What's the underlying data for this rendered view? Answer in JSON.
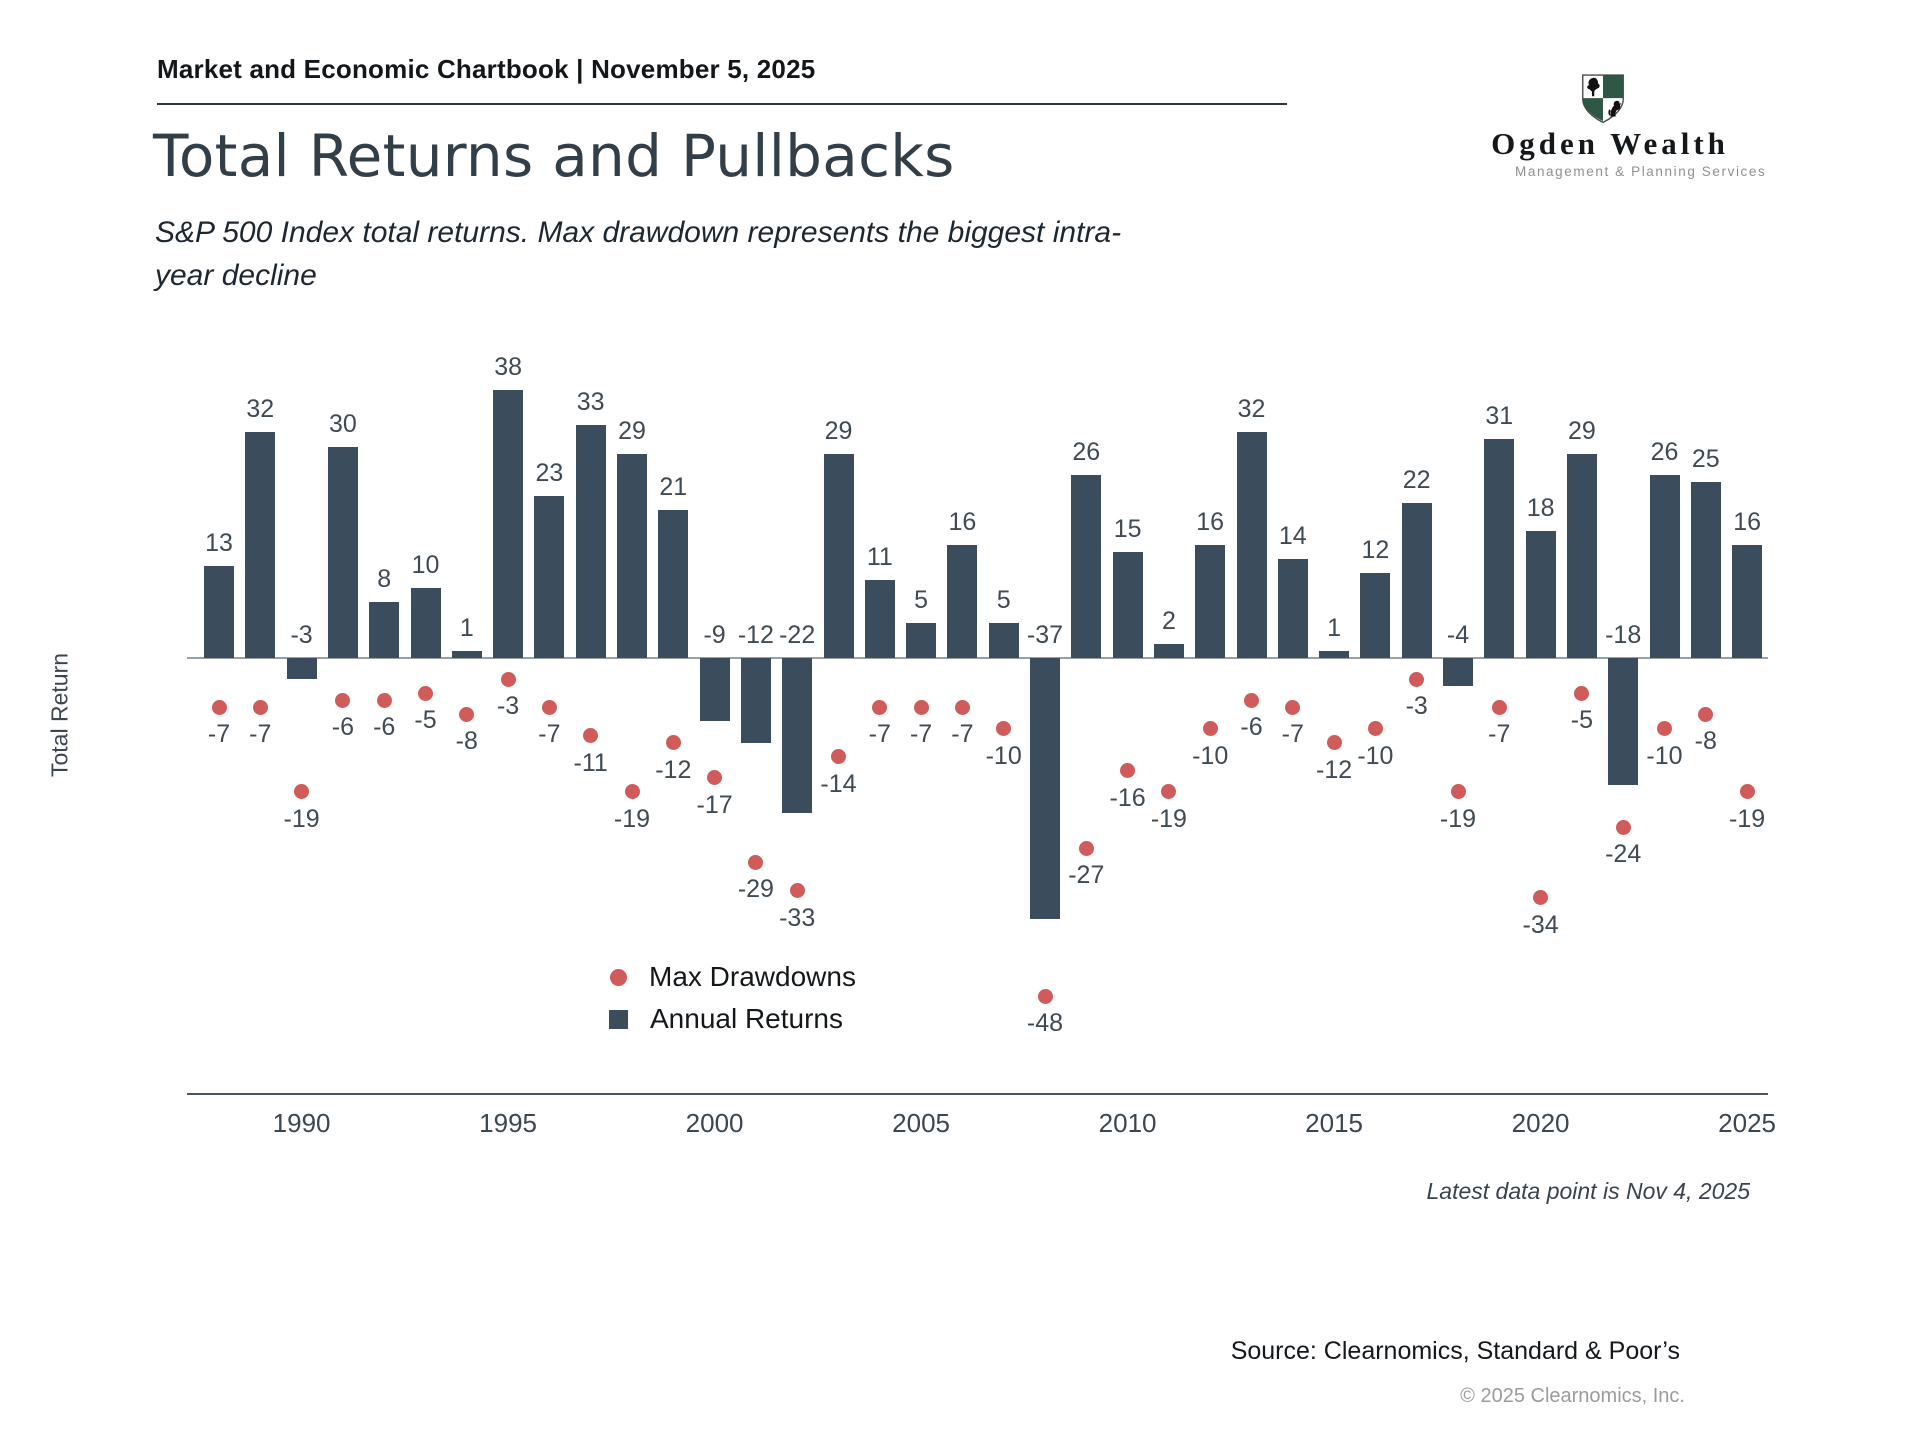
{
  "header": {
    "chartbook_line": "Market and Economic Chartbook | November 5, 2025"
  },
  "logo": {
    "name": "Ogden Wealth",
    "tagline": "Management & Planning Services"
  },
  "title": "Total Returns and Pullbacks",
  "subtitle": "S&P 500 Index total returns. Max drawdown represents the biggest intra-year decline",
  "ylabel": "Total Return",
  "legend": {
    "drawdowns": "Max Drawdowns",
    "returns": "Annual Returns"
  },
  "footnote": "Latest data point is Nov 4, 2025",
  "source": "Source: Clearnomics, Standard & Poor’s",
  "copyright": "© 2025 Clearnomics, Inc.",
  "colors": {
    "bar": "#3b4d5c",
    "dot": "#cf5b5b",
    "title": "#333f48"
  },
  "chart_data": {
    "type": "bar",
    "title": "Total Returns and Pullbacks",
    "xlabel": "",
    "ylabel": "Total Return",
    "grid": false,
    "legend_position": "lower center",
    "x": [
      1988,
      1989,
      1990,
      1991,
      1992,
      1993,
      1994,
      1995,
      1996,
      1997,
      1998,
      1999,
      2000,
      2001,
      2002,
      2003,
      2004,
      2005,
      2006,
      2007,
      2008,
      2009,
      2010,
      2011,
      2012,
      2013,
      2014,
      2015,
      2016,
      2017,
      2018,
      2019,
      2020,
      2021,
      2022,
      2023,
      2024,
      2025
    ],
    "xticks": [
      1990,
      1995,
      2000,
      2005,
      2010,
      2015,
      2020,
      2025
    ],
    "ylim": [
      -52,
      42
    ],
    "series": [
      {
        "name": "Annual Returns",
        "type": "bar",
        "values": [
          13,
          32,
          -3,
          30,
          8,
          10,
          1,
          38,
          23,
          33,
          29,
          21,
          -9,
          -12,
          -22,
          29,
          11,
          5,
          16,
          5,
          -37,
          26,
          15,
          2,
          16,
          32,
          14,
          1,
          12,
          22,
          -4,
          31,
          18,
          29,
          -18,
          26,
          25,
          16
        ]
      },
      {
        "name": "Max Drawdowns",
        "type": "scatter",
        "values": [
          -7,
          -7,
          -19,
          -6,
          -6,
          -5,
          -8,
          -3,
          -7,
          -11,
          -19,
          -12,
          -17,
          -29,
          -33,
          -14,
          -7,
          -7,
          -7,
          -10,
          -48,
          -27,
          -16,
          -19,
          -10,
          -6,
          -7,
          -12,
          -10,
          -3,
          -19,
          -7,
          -34,
          -5,
          -24,
          -10,
          -8,
          -19
        ]
      }
    ],
    "note": "Latest data point is Nov 4, 2025"
  }
}
